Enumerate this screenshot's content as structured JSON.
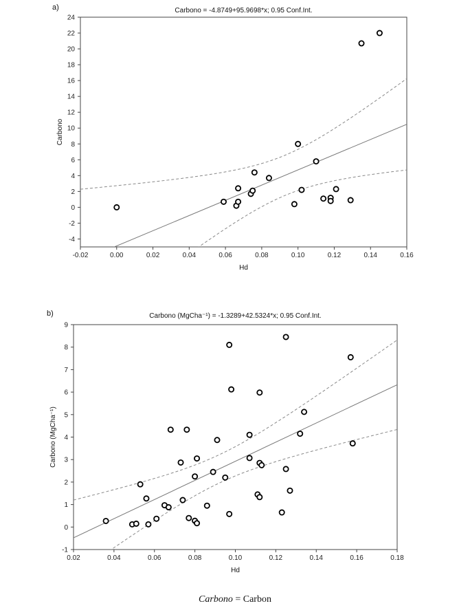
{
  "chart_data": [
    {
      "type": "scatter",
      "panel_label": "a)",
      "title": "Carbono = -4.8749+95.9698*x; 0.95 Conf.Int.",
      "xlabel": "Hd",
      "ylabel": "Carbono",
      "xlim": [
        -0.02,
        0.16
      ],
      "ylim": [
        -5,
        24
      ],
      "xticks": [
        "-0.02",
        "0.00",
        "0.02",
        "0.04",
        "0.06",
        "0.08",
        "0.10",
        "0.12",
        "0.14",
        "0.16"
      ],
      "yticks": [
        "-4",
        "-2",
        "0",
        "2",
        "4",
        "6",
        "8",
        "10",
        "12",
        "14",
        "16",
        "18",
        "20",
        "22",
        "24"
      ],
      "regression": {
        "intercept": -4.8749,
        "slope": 95.9698
      },
      "conf_level": 0.95,
      "grid": false,
      "points": [
        [
          0.0,
          0.0
        ],
        [
          0.059,
          0.7
        ],
        [
          0.066,
          0.2
        ],
        [
          0.067,
          0.7
        ],
        [
          0.067,
          2.4
        ],
        [
          0.074,
          1.7
        ],
        [
          0.075,
          2.1
        ],
        [
          0.076,
          4.4
        ],
        [
          0.084,
          3.7
        ],
        [
          0.098,
          0.4
        ],
        [
          0.1,
          8.0
        ],
        [
          0.102,
          2.2
        ],
        [
          0.11,
          5.8
        ],
        [
          0.114,
          1.1
        ],
        [
          0.118,
          1.2
        ],
        [
          0.118,
          0.8
        ],
        [
          0.121,
          2.3
        ],
        [
          0.129,
          0.9
        ],
        [
          0.135,
          20.7
        ],
        [
          0.145,
          22.0
        ]
      ]
    },
    {
      "type": "scatter",
      "panel_label": "b)",
      "title": "Carbono (MgCha⁻¹)  = -1.3289+42.5324*x; 0.95 Conf.Int.",
      "xlabel": "Hd",
      "ylabel": "Carbono (MgCha⁻¹)",
      "xlim": [
        0.02,
        0.18
      ],
      "ylim": [
        -1,
        9
      ],
      "xticks": [
        "0.02",
        "0.04",
        "0.06",
        "0.08",
        "0.10",
        "0.12",
        "0.14",
        "0.16",
        "0.18"
      ],
      "yticks": [
        "-1",
        "0",
        "1",
        "2",
        "3",
        "4",
        "5",
        "6",
        "7",
        "8",
        "9"
      ],
      "regression": {
        "intercept": -1.3289,
        "slope": 42.5324
      },
      "conf_level": 0.95,
      "grid": false,
      "points": [
        [
          0.036,
          0.27
        ],
        [
          0.049,
          0.12
        ],
        [
          0.051,
          0.15
        ],
        [
          0.053,
          1.9
        ],
        [
          0.056,
          1.27
        ],
        [
          0.057,
          0.12
        ],
        [
          0.061,
          0.37
        ],
        [
          0.065,
          0.97
        ],
        [
          0.067,
          0.88
        ],
        [
          0.068,
          4.33
        ],
        [
          0.073,
          2.87
        ],
        [
          0.074,
          1.2
        ],
        [
          0.076,
          4.33
        ],
        [
          0.077,
          0.4
        ],
        [
          0.08,
          0.28
        ],
        [
          0.08,
          2.25
        ],
        [
          0.081,
          3.05
        ],
        [
          0.081,
          0.17
        ],
        [
          0.086,
          0.95
        ],
        [
          0.089,
          2.45
        ],
        [
          0.091,
          3.87
        ],
        [
          0.095,
          2.2
        ],
        [
          0.097,
          8.1
        ],
        [
          0.097,
          0.58
        ],
        [
          0.098,
          6.12
        ],
        [
          0.107,
          4.1
        ],
        [
          0.107,
          3.07
        ],
        [
          0.111,
          1.45
        ],
        [
          0.112,
          1.33
        ],
        [
          0.112,
          2.85
        ],
        [
          0.113,
          2.75
        ],
        [
          0.112,
          5.98
        ],
        [
          0.123,
          0.65
        ],
        [
          0.125,
          8.45
        ],
        [
          0.125,
          2.58
        ],
        [
          0.127,
          1.62
        ],
        [
          0.132,
          4.15
        ],
        [
          0.134,
          5.12
        ],
        [
          0.157,
          7.55
        ],
        [
          0.158,
          3.72
        ]
      ]
    }
  ],
  "caption": {
    "italic": "Carbono",
    "rest": " = Carbon"
  }
}
